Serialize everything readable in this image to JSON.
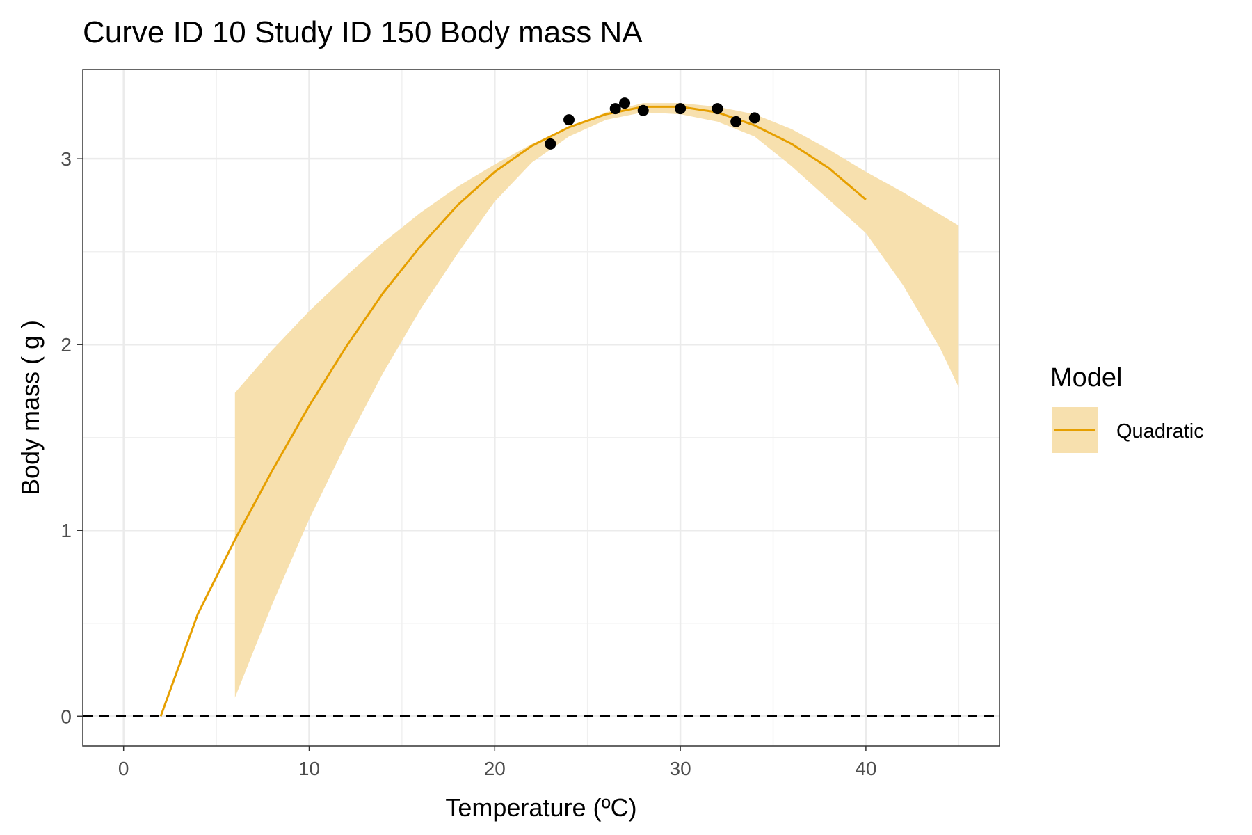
{
  "chart_data": {
    "type": "line",
    "title": "Curve ID 10 Study ID 150 Body mass NA",
    "xlabel": "Temperature (ºC)",
    "ylabel": "Body mass ( g )",
    "xlim": [
      -2.2,
      47.2
    ],
    "ylim": [
      -0.16,
      3.48
    ],
    "x_ticks": [
      0,
      10,
      20,
      30,
      40
    ],
    "y_ticks": [
      0,
      1,
      2,
      3
    ],
    "grid": true,
    "legend": {
      "title": "Model",
      "position": "right",
      "entries": [
        "Quadratic"
      ]
    },
    "colors": {
      "line": "#E69F00",
      "ribbon": "#F7E0AE",
      "points": "#000000",
      "reference": "#000000"
    },
    "series": [
      {
        "name": "Quadratic",
        "model": "quadratic",
        "x": [
          2,
          4,
          6,
          8,
          10,
          12,
          14,
          16,
          18,
          20,
          22,
          24,
          26,
          28,
          30,
          32,
          34,
          36,
          38,
          40
        ],
        "y": [
          0.0,
          0.55,
          0.95,
          1.32,
          1.67,
          1.99,
          2.28,
          2.53,
          2.75,
          2.93,
          3.07,
          3.17,
          3.24,
          3.28,
          3.28,
          3.25,
          3.18,
          3.08,
          2.95,
          2.78
        ]
      }
    ],
    "ribbon": {
      "x": [
        6,
        8,
        10,
        12,
        14,
        16,
        18,
        20,
        22,
        24,
        26,
        28,
        30,
        32,
        34,
        36,
        38,
        40,
        42,
        44,
        45
      ],
      "upper": [
        1.74,
        1.97,
        2.18,
        2.37,
        2.55,
        2.71,
        2.85,
        2.97,
        3.08,
        3.17,
        3.25,
        3.3,
        3.3,
        3.28,
        3.24,
        3.16,
        3.05,
        2.93,
        2.82,
        2.7,
        2.64
      ],
      "lower": [
        0.1,
        0.6,
        1.06,
        1.47,
        1.85,
        2.19,
        2.49,
        2.77,
        2.98,
        3.12,
        3.21,
        3.25,
        3.24,
        3.2,
        3.12,
        2.96,
        2.78,
        2.6,
        2.32,
        1.98,
        1.77
      ]
    },
    "points": [
      {
        "x": 23,
        "y": 3.08
      },
      {
        "x": 24,
        "y": 3.21
      },
      {
        "x": 26.5,
        "y": 3.27
      },
      {
        "x": 27,
        "y": 3.3
      },
      {
        "x": 28,
        "y": 3.26
      },
      {
        "x": 30,
        "y": 3.27
      },
      {
        "x": 32,
        "y": 3.27
      },
      {
        "x": 33,
        "y": 3.2
      },
      {
        "x": 34,
        "y": 3.22
      }
    ],
    "reference_line": {
      "y": 0,
      "style": "dashed"
    }
  }
}
